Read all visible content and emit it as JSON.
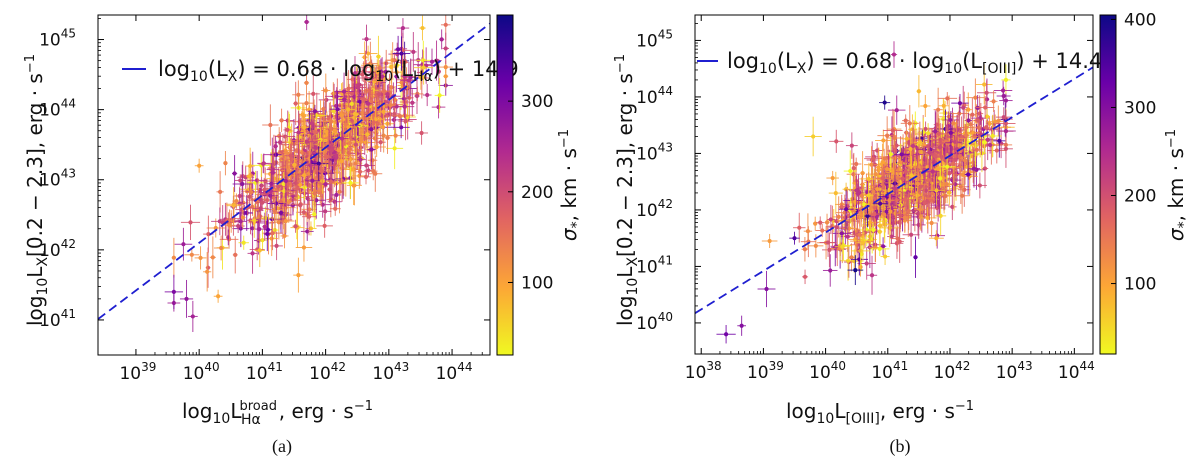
{
  "chart_data": [
    {
      "type": "scatter",
      "panel_label": "(a)",
      "xlabel": "log₁₀L_Hα^broad, erg · s⁻¹",
      "xlabel_parts": {
        "prefix": "log₁₀L",
        "sub": "Hα",
        "sup": "broad",
        "suffix": ", erg · s⁻¹"
      },
      "ylabel": "log₁₀L_X[0.2 − 2.3], erg · s⁻¹",
      "xlim": [
        38.4,
        44.6
      ],
      "ylim": [
        40.5,
        45.35
      ],
      "x_ticks": [
        39,
        40,
        41,
        42,
        43,
        44
      ],
      "x_tick_labels": [
        "10^39",
        "10^40",
        "10^41",
        "10^42",
        "10^43",
        "10^44"
      ],
      "y_ticks": [
        41,
        42,
        43,
        44,
        45
      ],
      "y_tick_labels": [
        "10^41",
        "10^42",
        "10^43",
        "10^44",
        "10^45"
      ],
      "fit": {
        "slope": 0.68,
        "intercept": 14.9,
        "legend": "log₁₀(L_X) = 0.68 · log₁₀(L_Hα) + 14.9",
        "color": "#1f1fd0"
      },
      "colorbar": {
        "label": "σ*, km · s⁻¹",
        "range": [
          20,
          395
        ],
        "ticks": [
          100,
          200,
          300
        ],
        "tick_labels": [
          "100",
          "200",
          "300"
        ]
      },
      "points": {
        "count": 900,
        "x_center": 42.0,
        "x_spread": 0.75,
        "x_min": 39.6,
        "x_max": 43.9,
        "scatter": 0.38,
        "sigma_mean": 160,
        "sigma_spread": 70
      },
      "outliers": [
        {
          "x": 41.7,
          "y": 45.25,
          "sigma": 250
        },
        {
          "x": 40.0,
          "y": 43.2,
          "sigma": 100
        },
        {
          "x": 39.6,
          "y": 41.4,
          "sigma": 300
        },
        {
          "x": 39.8,
          "y": 41.3,
          "sigma": 280
        },
        {
          "x": 39.9,
          "y": 41.05,
          "sigma": 260
        },
        {
          "x": 43.55,
          "y": 44.6,
          "sigma": 60
        },
        {
          "x": 43.2,
          "y": 44.8,
          "sigma": 340
        }
      ]
    },
    {
      "type": "scatter",
      "panel_label": "(b)",
      "xlabel": "log₁₀L_[OIII], erg · s⁻¹",
      "xlabel_parts": {
        "prefix": "log₁₀L",
        "sub": "[OIII]",
        "sup": "",
        "suffix": ", erg · s⁻¹"
      },
      "ylabel": "log₁₀L_X[0.2 − 2.3], erg · s⁻¹",
      "xlim": [
        37.9,
        44.3
      ],
      "ylim": [
        39.45,
        45.45
      ],
      "x_ticks": [
        38,
        39,
        40,
        41,
        42,
        43,
        44
      ],
      "x_tick_labels": [
        "10^38",
        "10^39",
        "10^40",
        "10^41",
        "10^42",
        "10^43",
        "10^44"
      ],
      "y_ticks": [
        40,
        41,
        42,
        43,
        44,
        45
      ],
      "y_tick_labels": [
        "10^40",
        "10^41",
        "10^42",
        "10^43",
        "10^44",
        "10^45"
      ],
      "fit": {
        "slope": 0.68,
        "intercept": 14.4,
        "legend": "log₁₀(L_X) = 0.68 · log₁₀(L_[OIII]) + 14.4",
        "color": "#1f1fd0"
      },
      "colorbar": {
        "label": "σ*, km · s⁻¹",
        "range": [
          20,
          405
        ],
        "ticks": [
          100,
          200,
          300,
          400
        ],
        "tick_labels": [
          "100",
          "200",
          "300",
          "400"
        ]
      },
      "points": {
        "count": 900,
        "x_center": 41.4,
        "x_spread": 0.62,
        "x_min": 39.4,
        "x_max": 42.9,
        "scatter": 0.42,
        "sigma_mean": 165,
        "sigma_spread": 80
      },
      "outliers": [
        {
          "x": 41.1,
          "y": 44.75,
          "sigma": 250
        },
        {
          "x": 38.4,
          "y": 39.8,
          "sigma": 320
        },
        {
          "x": 38.65,
          "y": 39.95,
          "sigma": 300
        },
        {
          "x": 39.05,
          "y": 40.6,
          "sigma": 300
        },
        {
          "x": 39.5,
          "y": 41.5,
          "sigma": 350
        },
        {
          "x": 39.1,
          "y": 41.45,
          "sigma": 110
        },
        {
          "x": 40.95,
          "y": 43.9,
          "sigma": 390
        },
        {
          "x": 39.8,
          "y": 43.3,
          "sigma": 60
        },
        {
          "x": 41.5,
          "y": 44.1,
          "sigma": 80
        }
      ]
    }
  ]
}
